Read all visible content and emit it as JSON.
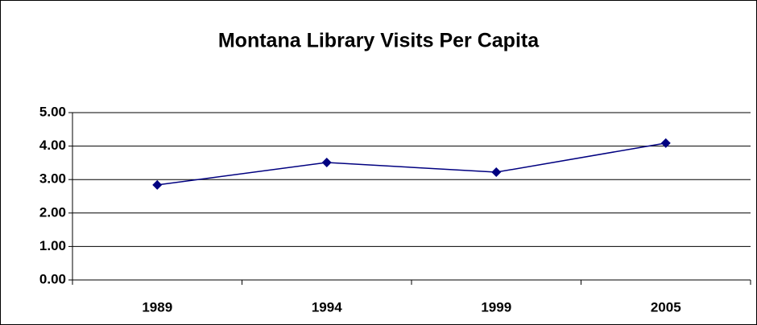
{
  "chart_data": {
    "type": "line",
    "title": "Montana Library Visits Per Capita",
    "categories": [
      "1989",
      "1994",
      "1999",
      "2005"
    ],
    "series": [
      {
        "name": null,
        "color": "#000080",
        "values": [
          2.84,
          3.51,
          3.22,
          4.09
        ]
      }
    ],
    "ylim": [
      0,
      5
    ],
    "yticks": [
      {
        "value": 0,
        "label": "0.00"
      },
      {
        "value": 1,
        "label": "1.00"
      },
      {
        "value": 2,
        "label": "2.00"
      },
      {
        "value": 3,
        "label": "3.00"
      },
      {
        "value": 4,
        "label": "4.00"
      },
      {
        "value": 5,
        "label": "5.00"
      }
    ],
    "grid": true
  }
}
